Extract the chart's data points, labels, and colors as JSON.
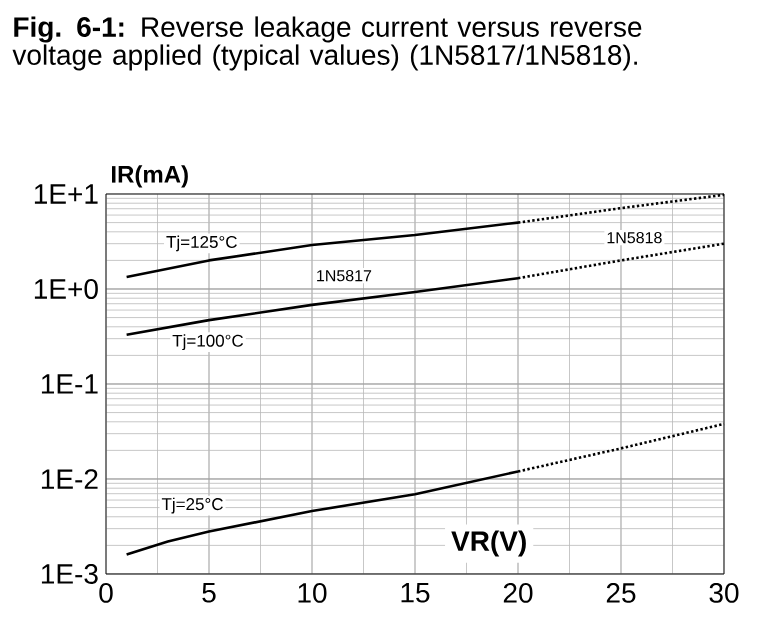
{
  "chart_data": {
    "type": "line",
    "title": "**Fig. 6-1:** Reverse leakage current versus reverse voltage applied  (typical values) (1N5817/1N5818).",
    "xlabel": "VR(V)",
    "ylabel": "IR(mA)",
    "log": "y",
    "grid": true,
    "marker": "none",
    "xlim": [
      0,
      30
    ],
    "xticks": [
      0,
      5,
      10,
      15,
      20,
      25,
      30
    ],
    "ylim": [
      0.001,
      10
    ],
    "yticks": [
      {
        "value": 0.001,
        "label": "1E-3"
      },
      {
        "value": 0.01,
        "label": "1E-2"
      },
      {
        "value": 0.1,
        "label": "1E-1"
      },
      {
        "value": 1,
        "label": "1E+0"
      },
      {
        "value": 10,
        "label": "1E+1"
      }
    ],
    "series": [
      {
        "name": "Tj=125°C",
        "color": "#000000",
        "line_style": "solid",
        "x": [
          1,
          5,
          10,
          15,
          20
        ],
        "values": [
          1.34,
          2.0,
          2.9,
          3.7,
          5.0
        ]
      },
      {
        "color": "#000000",
        "line_style": "dotted",
        "x": [
          20,
          25,
          30
        ],
        "values": [
          5.0,
          7.1,
          9.8
        ]
      },
      {
        "name": "Tj=100°C",
        "color": "#000000",
        "line_style": "solid",
        "x": [
          1,
          5,
          10,
          15,
          20
        ],
        "values": [
          0.33,
          0.47,
          0.68,
          0.93,
          1.3
        ]
      },
      {
        "color": "#000000",
        "line_style": "dotted",
        "x": [
          20,
          25,
          30
        ],
        "values": [
          1.3,
          2.0,
          3.0
        ]
      },
      {
        "name": "Tj=25°C",
        "color": "#000000",
        "line_style": "solid",
        "x": [
          1,
          3,
          5,
          10,
          15,
          20
        ],
        "values": [
          0.0016,
          0.0022,
          0.0028,
          0.0046,
          0.0069,
          0.012
        ]
      },
      {
        "color": "#000000",
        "line_style": "dotted",
        "x": [
          20,
          25,
          30
        ],
        "values": [
          0.012,
          0.021,
          0.038
        ]
      }
    ],
    "annotations": [
      "1N5817",
      "1N5818"
    ]
  }
}
